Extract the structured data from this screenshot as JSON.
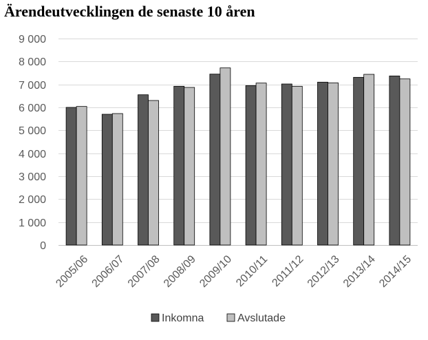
{
  "chart_data": {
    "type": "bar",
    "title": "Ärendeutvecklingen de senaste 10 åren",
    "categories": [
      "2005/06",
      "2006/07",
      "2007/08",
      "2008/09",
      "2009/10",
      "2010/11",
      "2011/12",
      "2012/13",
      "2013/14",
      "2014/15"
    ],
    "series": [
      {
        "name": "Inkomna",
        "color": "#595959",
        "values": [
          6000,
          5700,
          6550,
          6920,
          7450,
          6950,
          7020,
          7100,
          7310,
          7370
        ]
      },
      {
        "name": "Avslutade",
        "color": "#bfbfbf",
        "values": [
          6040,
          5730,
          6300,
          6870,
          7720,
          7060,
          6920,
          7070,
          7440,
          7240
        ]
      }
    ],
    "ylim": [
      0,
      9000
    ],
    "yticks": [
      0,
      1000,
      2000,
      3000,
      4000,
      5000,
      6000,
      7000,
      8000,
      9000
    ],
    "ytick_labels": [
      "0",
      "1 000",
      "2 000",
      "3 000",
      "4 000",
      "5 000",
      "6 000",
      "7 000",
      "8 000",
      "9 000"
    ],
    "grid": true,
    "legend": "bottom"
  }
}
